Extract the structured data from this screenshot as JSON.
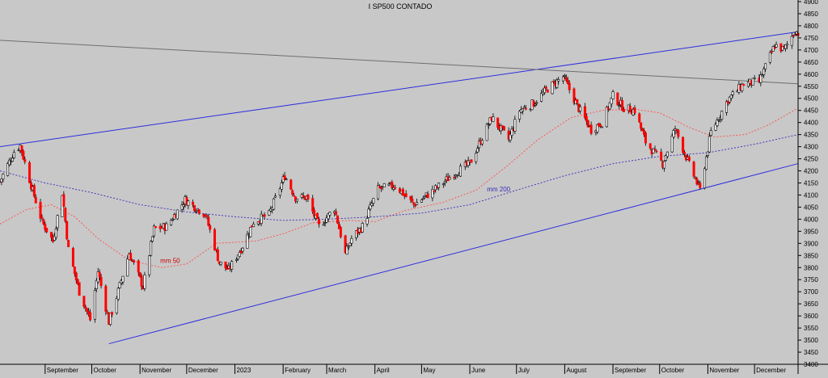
{
  "chart_data": {
    "type": "candlestick",
    "title": "I SP500 CONTADO",
    "xlabel": "",
    "ylabel": "",
    "ylim": [
      3400,
      4900
    ],
    "y_ticks": [
      3400,
      3450,
      3500,
      3550,
      3600,
      3650,
      3700,
      3750,
      3800,
      3850,
      3900,
      3950,
      4000,
      4050,
      4100,
      4150,
      4200,
      4250,
      4300,
      4350,
      4400,
      4450,
      4500,
      4550,
      4600,
      4650,
      4700,
      4750,
      4800,
      4850,
      4900
    ],
    "x_range": [
      "2022-08-03",
      "2023-12-29"
    ],
    "x_ticks": [
      {
        "date": "2022-09-01",
        "label": "September"
      },
      {
        "date": "2022-10-01",
        "label": "October"
      },
      {
        "date": "2022-11-01",
        "label": "November"
      },
      {
        "date": "2022-12-01",
        "label": "December"
      },
      {
        "date": "2023-01-01",
        "label": "2023"
      },
      {
        "date": "2023-02-01",
        "label": "February"
      },
      {
        "date": "2023-03-01",
        "label": "March"
      },
      {
        "date": "2023-04-01",
        "label": "April"
      },
      {
        "date": "2023-05-01",
        "label": "May"
      },
      {
        "date": "2023-06-01",
        "label": "June"
      },
      {
        "date": "2023-07-01",
        "label": "July"
      },
      {
        "date": "2023-08-01",
        "label": "August"
      },
      {
        "date": "2023-09-01",
        "label": "September"
      },
      {
        "date": "2023-10-01",
        "label": "October"
      },
      {
        "date": "2023-11-01",
        "label": "November"
      },
      {
        "date": "2023-12-01",
        "label": "December"
      }
    ],
    "grid": false,
    "candle_colors": {
      "up": "#ffffff",
      "down": "#ff0000",
      "outline": "#000000"
    },
    "price_path": [
      [
        "2022-08-03",
        4155
      ],
      [
        "2022-08-12",
        4280
      ],
      [
        "2022-08-16",
        4305
      ],
      [
        "2022-08-23",
        4140
      ],
      [
        "2022-08-30",
        3990
      ],
      [
        "2022-09-06",
        3910
      ],
      [
        "2022-09-12",
        4110
      ],
      [
        "2022-09-16",
        3875
      ],
      [
        "2022-09-23",
        3700
      ],
      [
        "2022-09-30",
        3585
      ],
      [
        "2022-10-05",
        3785
      ],
      [
        "2022-10-12",
        3575
      ],
      [
        "2022-10-17",
        3680
      ],
      [
        "2022-10-25",
        3860
      ],
      [
        "2022-11-03",
        3720
      ],
      [
        "2022-11-10",
        3960
      ],
      [
        "2022-11-18",
        3970
      ],
      [
        "2022-11-30",
        4080
      ],
      [
        "2022-12-13",
        4020
      ],
      [
        "2022-12-22",
        3820
      ],
      [
        "2022-12-28",
        3790
      ],
      [
        "2023-01-06",
        3890
      ],
      [
        "2023-01-13",
        3990
      ],
      [
        "2023-01-23",
        4020
      ],
      [
        "2023-02-02",
        4180
      ],
      [
        "2023-02-09",
        4090
      ],
      [
        "2023-02-16",
        4090
      ],
      [
        "2023-02-24",
        3970
      ],
      [
        "2023-03-06",
        4045
      ],
      [
        "2023-03-13",
        3855
      ],
      [
        "2023-03-17",
        3920
      ],
      [
        "2023-03-24",
        3970
      ],
      [
        "2023-04-03",
        4125
      ],
      [
        "2023-04-14",
        4140
      ],
      [
        "2023-04-26",
        4060
      ],
      [
        "2023-05-09",
        4120
      ],
      [
        "2023-05-22",
        4190
      ],
      [
        "2023-06-01",
        4230
      ],
      [
        "2023-06-15",
        4420
      ],
      [
        "2023-06-26",
        4330
      ],
      [
        "2023-07-03",
        4450
      ],
      [
        "2023-07-12",
        4480
      ],
      [
        "2023-07-21",
        4540
      ],
      [
        "2023-07-31",
        4590
      ],
      [
        "2023-08-09",
        4470
      ],
      [
        "2023-08-18",
        4370
      ],
      [
        "2023-08-25",
        4400
      ],
      [
        "2023-09-01",
        4510
      ],
      [
        "2023-09-08",
        4460
      ],
      [
        "2023-09-15",
        4450
      ],
      [
        "2023-09-22",
        4320
      ],
      [
        "2023-10-03",
        4230
      ],
      [
        "2023-10-11",
        4375
      ],
      [
        "2023-10-20",
        4225
      ],
      [
        "2023-10-27",
        4120
      ],
      [
        "2023-11-03",
        4360
      ],
      [
        "2023-11-14",
        4495
      ],
      [
        "2023-11-24",
        4560
      ],
      [
        "2023-12-04",
        4570
      ],
      [
        "2023-12-14",
        4720
      ],
      [
        "2023-12-20",
        4700
      ],
      [
        "2023-12-27",
        4780
      ],
      [
        "2023-12-29",
        4770
      ]
    ],
    "series": [
      {
        "name": "mm 50",
        "color": "#ff4d4d",
        "style": "dashed",
        "points": [
          [
            "2022-08-03",
            3980
          ],
          [
            "2022-08-20",
            4040
          ],
          [
            "2022-09-05",
            4060
          ],
          [
            "2022-09-20",
            4010
          ],
          [
            "2022-10-05",
            3920
          ],
          [
            "2022-10-25",
            3830
          ],
          [
            "2022-11-15",
            3800
          ],
          [
            "2022-12-01",
            3815
          ],
          [
            "2022-12-20",
            3900
          ],
          [
            "2023-01-15",
            3910
          ],
          [
            "2023-02-01",
            3940
          ],
          [
            "2023-02-20",
            3985
          ],
          [
            "2023-03-15",
            3995
          ],
          [
            "2023-04-01",
            3990
          ],
          [
            "2023-04-20",
            4035
          ],
          [
            "2023-05-15",
            4070
          ],
          [
            "2023-06-05",
            4120
          ],
          [
            "2023-06-25",
            4220
          ],
          [
            "2023-07-15",
            4330
          ],
          [
            "2023-08-05",
            4420
          ],
          [
            "2023-08-25",
            4450
          ],
          [
            "2023-09-15",
            4455
          ],
          [
            "2023-10-01",
            4440
          ],
          [
            "2023-10-20",
            4380
          ],
          [
            "2023-11-05",
            4340
          ],
          [
            "2023-11-25",
            4350
          ],
          [
            "2023-12-10",
            4390
          ],
          [
            "2023-12-29",
            4460
          ]
        ]
      },
      {
        "name": "mm 200",
        "color": "#3a2ab8",
        "style": "dashed",
        "points": [
          [
            "2022-08-03",
            4200
          ],
          [
            "2022-09-01",
            4150
          ],
          [
            "2022-10-01",
            4110
          ],
          [
            "2022-11-01",
            4060
          ],
          [
            "2022-12-01",
            4030
          ],
          [
            "2023-01-01",
            4010
          ],
          [
            "2023-02-01",
            3995
          ],
          [
            "2023-03-01",
            4000
          ],
          [
            "2023-04-01",
            4010
          ],
          [
            "2023-05-01",
            4025
          ],
          [
            "2023-06-01",
            4060
          ],
          [
            "2023-07-01",
            4120
          ],
          [
            "2023-08-01",
            4180
          ],
          [
            "2023-09-01",
            4230
          ],
          [
            "2023-10-01",
            4260
          ],
          [
            "2023-11-01",
            4275
          ],
          [
            "2023-12-01",
            4310
          ],
          [
            "2023-12-29",
            4350
          ]
        ]
      }
    ],
    "trendlines": [
      {
        "color": "#2d2de0",
        "from": [
          "2022-08-03",
          4300
        ],
        "to": [
          "2023-12-29",
          4775
        ]
      },
      {
        "color": "#2d2de0",
        "from": [
          "2022-10-12",
          3485
        ],
        "to": [
          "2023-12-29",
          4230
        ]
      },
      {
        "color": "#6e6e6e",
        "from": [
          "2022-08-03",
          4740
        ],
        "to": [
          "2023-12-29",
          4560
        ]
      }
    ],
    "annotations": [
      {
        "text": "mm 50",
        "date": "2022-11-14",
        "value": 3820,
        "color": "#cc0000"
      },
      {
        "text": "mm 200",
        "date": "2023-06-12",
        "value": 4115,
        "color": "#3a2ab8"
      }
    ]
  }
}
